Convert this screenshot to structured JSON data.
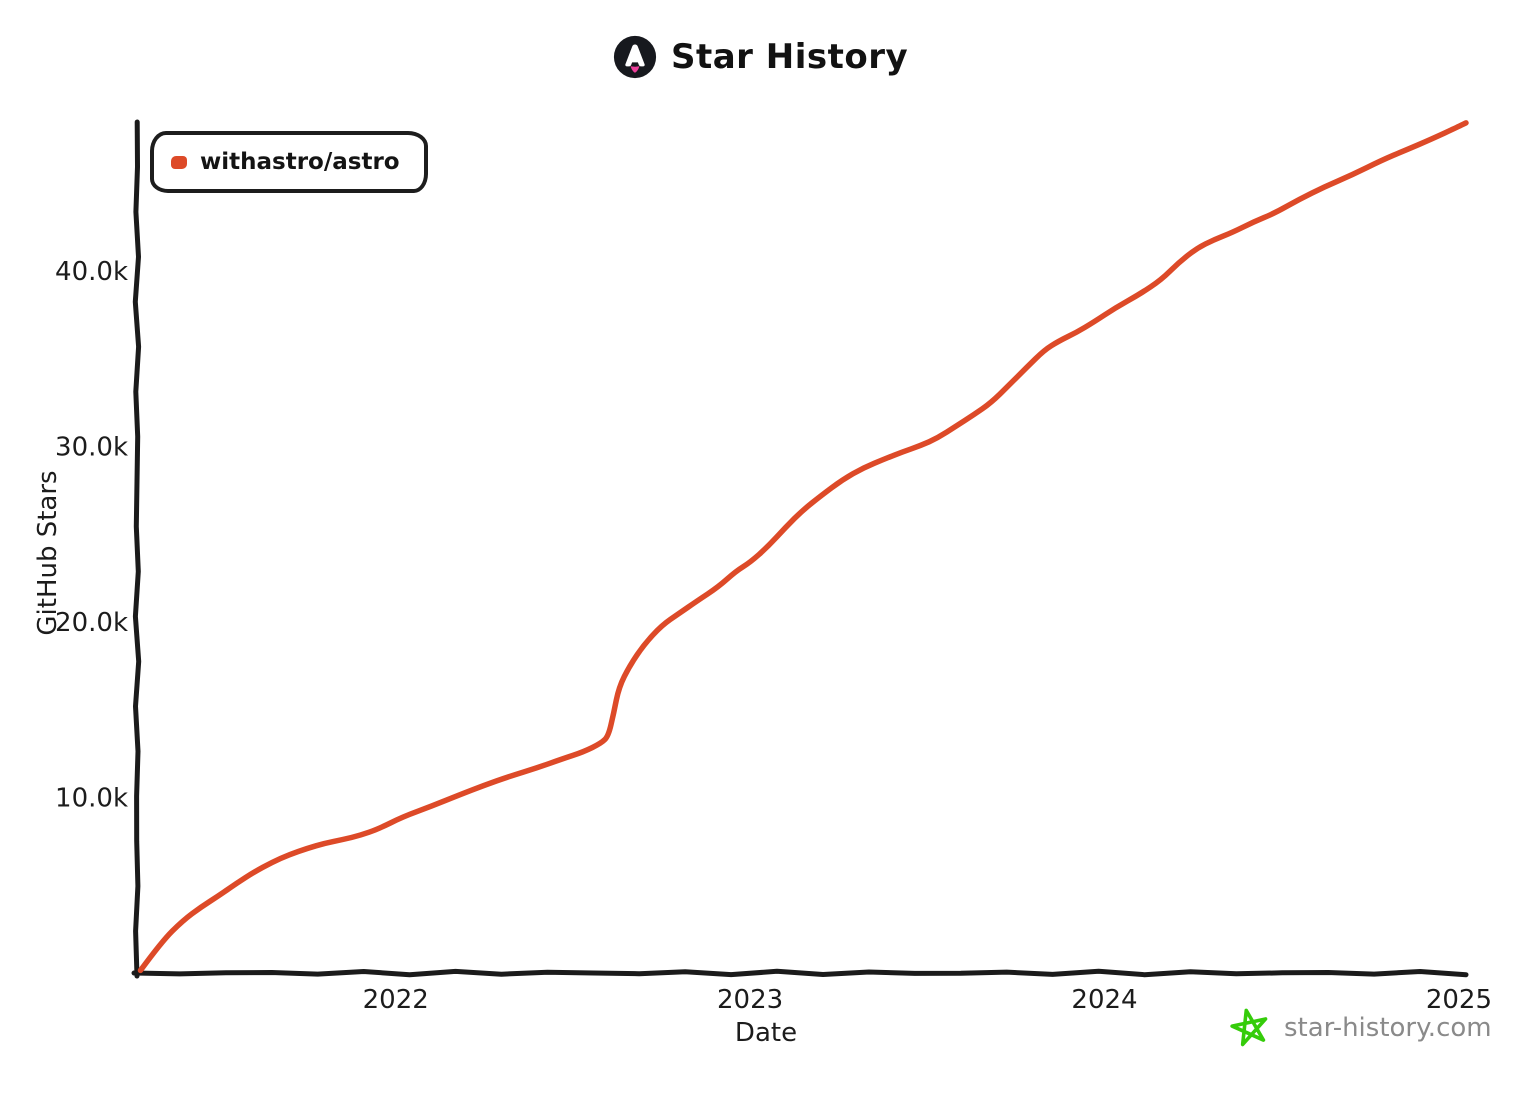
{
  "header": {
    "title": "Star History"
  },
  "legend": {
    "items": [
      {
        "label": "withastro/astro",
        "color": "#dd4a28"
      }
    ]
  },
  "watermark": {
    "text": "star-history.com",
    "star_color": "#35cc0a",
    "text_color": "#8a8a8a"
  },
  "colors": {
    "axis": "#1b1b1b",
    "background": "#ffffff",
    "logo_circle": "#17191e",
    "logo_flame": "#ee3f9b"
  },
  "chart_data": {
    "type": "line",
    "title": "Star History",
    "xlabel": "Date",
    "ylabel": "GitHub Stars",
    "xlim": [
      2021.27,
      2025.02
    ],
    "ylim": [
      0,
      48500
    ],
    "grid": false,
    "legend_position": "top-left",
    "x_ticks": [
      {
        "label": "2022",
        "value": 2022
      },
      {
        "label": "2023",
        "value": 2023
      },
      {
        "label": "2024",
        "value": 2024
      },
      {
        "label": "2025",
        "value": 2025
      }
    ],
    "y_ticks": [
      {
        "label": "10.0k",
        "value": 10000
      },
      {
        "label": "20.0k",
        "value": 20000
      },
      {
        "label": "30.0k",
        "value": 30000
      },
      {
        "label": "40.0k",
        "value": 40000
      }
    ],
    "series": [
      {
        "name": "withastro/astro",
        "color": "#dd4a28",
        "points": [
          [
            2021.28,
            150
          ],
          [
            2021.34,
            1800
          ],
          [
            2021.4,
            3000
          ],
          [
            2021.45,
            3750
          ],
          [
            2021.5,
            4400
          ],
          [
            2021.55,
            5100
          ],
          [
            2021.6,
            5750
          ],
          [
            2021.65,
            6300
          ],
          [
            2021.7,
            6750
          ],
          [
            2021.75,
            7100
          ],
          [
            2021.8,
            7400
          ],
          [
            2021.85,
            7600
          ],
          [
            2021.9,
            7850
          ],
          [
            2021.95,
            8200
          ],
          [
            2022.02,
            8900
          ],
          [
            2022.1,
            9500
          ],
          [
            2022.18,
            10150
          ],
          [
            2022.25,
            10700
          ],
          [
            2022.32,
            11200
          ],
          [
            2022.4,
            11700
          ],
          [
            2022.47,
            12200
          ],
          [
            2022.53,
            12600
          ],
          [
            2022.58,
            13100
          ],
          [
            2022.6,
            13500
          ],
          [
            2022.615,
            14800
          ],
          [
            2022.63,
            16300
          ],
          [
            2022.66,
            17500
          ],
          [
            2022.7,
            18700
          ],
          [
            2022.75,
            19800
          ],
          [
            2022.8,
            20500
          ],
          [
            2022.85,
            21200
          ],
          [
            2022.91,
            22000
          ],
          [
            2022.96,
            22900
          ],
          [
            2023.0,
            23400
          ],
          [
            2023.05,
            24300
          ],
          [
            2023.1,
            25400
          ],
          [
            2023.15,
            26400
          ],
          [
            2023.2,
            27200
          ],
          [
            2023.26,
            28100
          ],
          [
            2023.32,
            28800
          ],
          [
            2023.38,
            29300
          ],
          [
            2023.43,
            29700
          ],
          [
            2023.48,
            30050
          ],
          [
            2023.53,
            30500
          ],
          [
            2023.58,
            31150
          ],
          [
            2023.63,
            31800
          ],
          [
            2023.68,
            32500
          ],
          [
            2023.73,
            33500
          ],
          [
            2023.78,
            34500
          ],
          [
            2023.83,
            35500
          ],
          [
            2023.87,
            36000
          ],
          [
            2023.92,
            36500
          ],
          [
            2023.97,
            37100
          ],
          [
            2024.03,
            37900
          ],
          [
            2024.1,
            38700
          ],
          [
            2024.16,
            39500
          ],
          [
            2024.21,
            40500
          ],
          [
            2024.26,
            41300
          ],
          [
            2024.31,
            41800
          ],
          [
            2024.36,
            42200
          ],
          [
            2024.42,
            42800
          ],
          [
            2024.48,
            43300
          ],
          [
            2024.55,
            44100
          ],
          [
            2024.62,
            44800
          ],
          [
            2024.7,
            45500
          ],
          [
            2024.78,
            46300
          ],
          [
            2024.85,
            46900
          ],
          [
            2024.92,
            47500
          ],
          [
            2025.0,
            48250
          ],
          [
            2025.02,
            48450
          ]
        ]
      }
    ]
  }
}
